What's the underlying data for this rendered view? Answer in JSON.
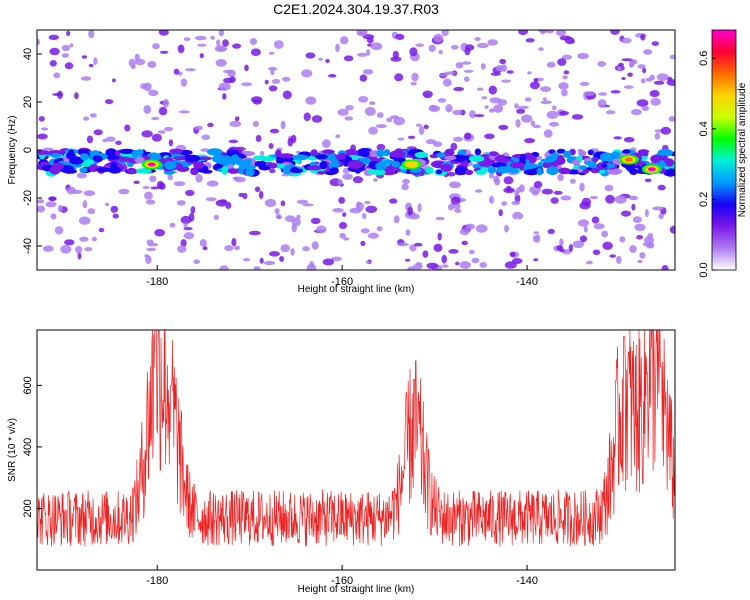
{
  "title": "C2E1.2024.304.19.37.R03",
  "chart_data": [
    {
      "type": "heatmap",
      "xlabel": "Height of straight line (km)",
      "ylabel": "Frequency (Hz)",
      "xlim": [
        -193,
        -124
      ],
      "ylim": [
        -50,
        50
      ],
      "x_ticks": [
        -180,
        -160,
        -140
      ],
      "y_ticks": [
        -40,
        -20,
        0,
        20,
        40
      ],
      "colorbar": {
        "label": "Normalized spectral amplitude",
        "range": [
          0.0,
          0.68
        ],
        "ticks": [
          0.0,
          0.2,
          0.4,
          0.6
        ],
        "tick_labels": [
          "0.0",
          "0.2",
          "0.4",
          "0.6"
        ],
        "colors": [
          "#ffffff",
          "#ad7cf2",
          "#7a19e8",
          "#1b00f5",
          "#0099ff",
          "#00f0d8",
          "#00ff00",
          "#c8ff00",
          "#ffd400",
          "#ff6a00",
          "#ff0033",
          "#ff00cc"
        ]
      },
      "band_center_hz": -5,
      "peaks": [
        {
          "x": -180.6,
          "y": -6,
          "value": 0.68
        },
        {
          "x": -152.5,
          "y": -6,
          "value": 0.5
        },
        {
          "x": -129.0,
          "y": -4,
          "value": 0.55
        },
        {
          "x": -126.5,
          "y": -8,
          "value": 0.68
        }
      ],
      "grid": false
    },
    {
      "type": "line",
      "xlabel": "Height of straight line (km)",
      "ylabel": "SNR (10 * v/v)",
      "xlim": [
        -193,
        -124
      ],
      "ylim": [
        0,
        780
      ],
      "x_ticks": [
        -180,
        -160,
        -140
      ],
      "y_ticks": [
        200,
        400,
        600
      ],
      "color": "#ee2222",
      "baseline": 150,
      "noise_amplitude": 120,
      "peaks": [
        {
          "x": -180.2,
          "y": 780
        },
        {
          "x": -178.5,
          "y": 600
        },
        {
          "x": -152.2,
          "y": 620
        },
        {
          "x": -129.5,
          "y": 760
        },
        {
          "x": -127.0,
          "y": 640
        },
        {
          "x": -125.5,
          "y": 660
        }
      ],
      "grid": false
    }
  ]
}
